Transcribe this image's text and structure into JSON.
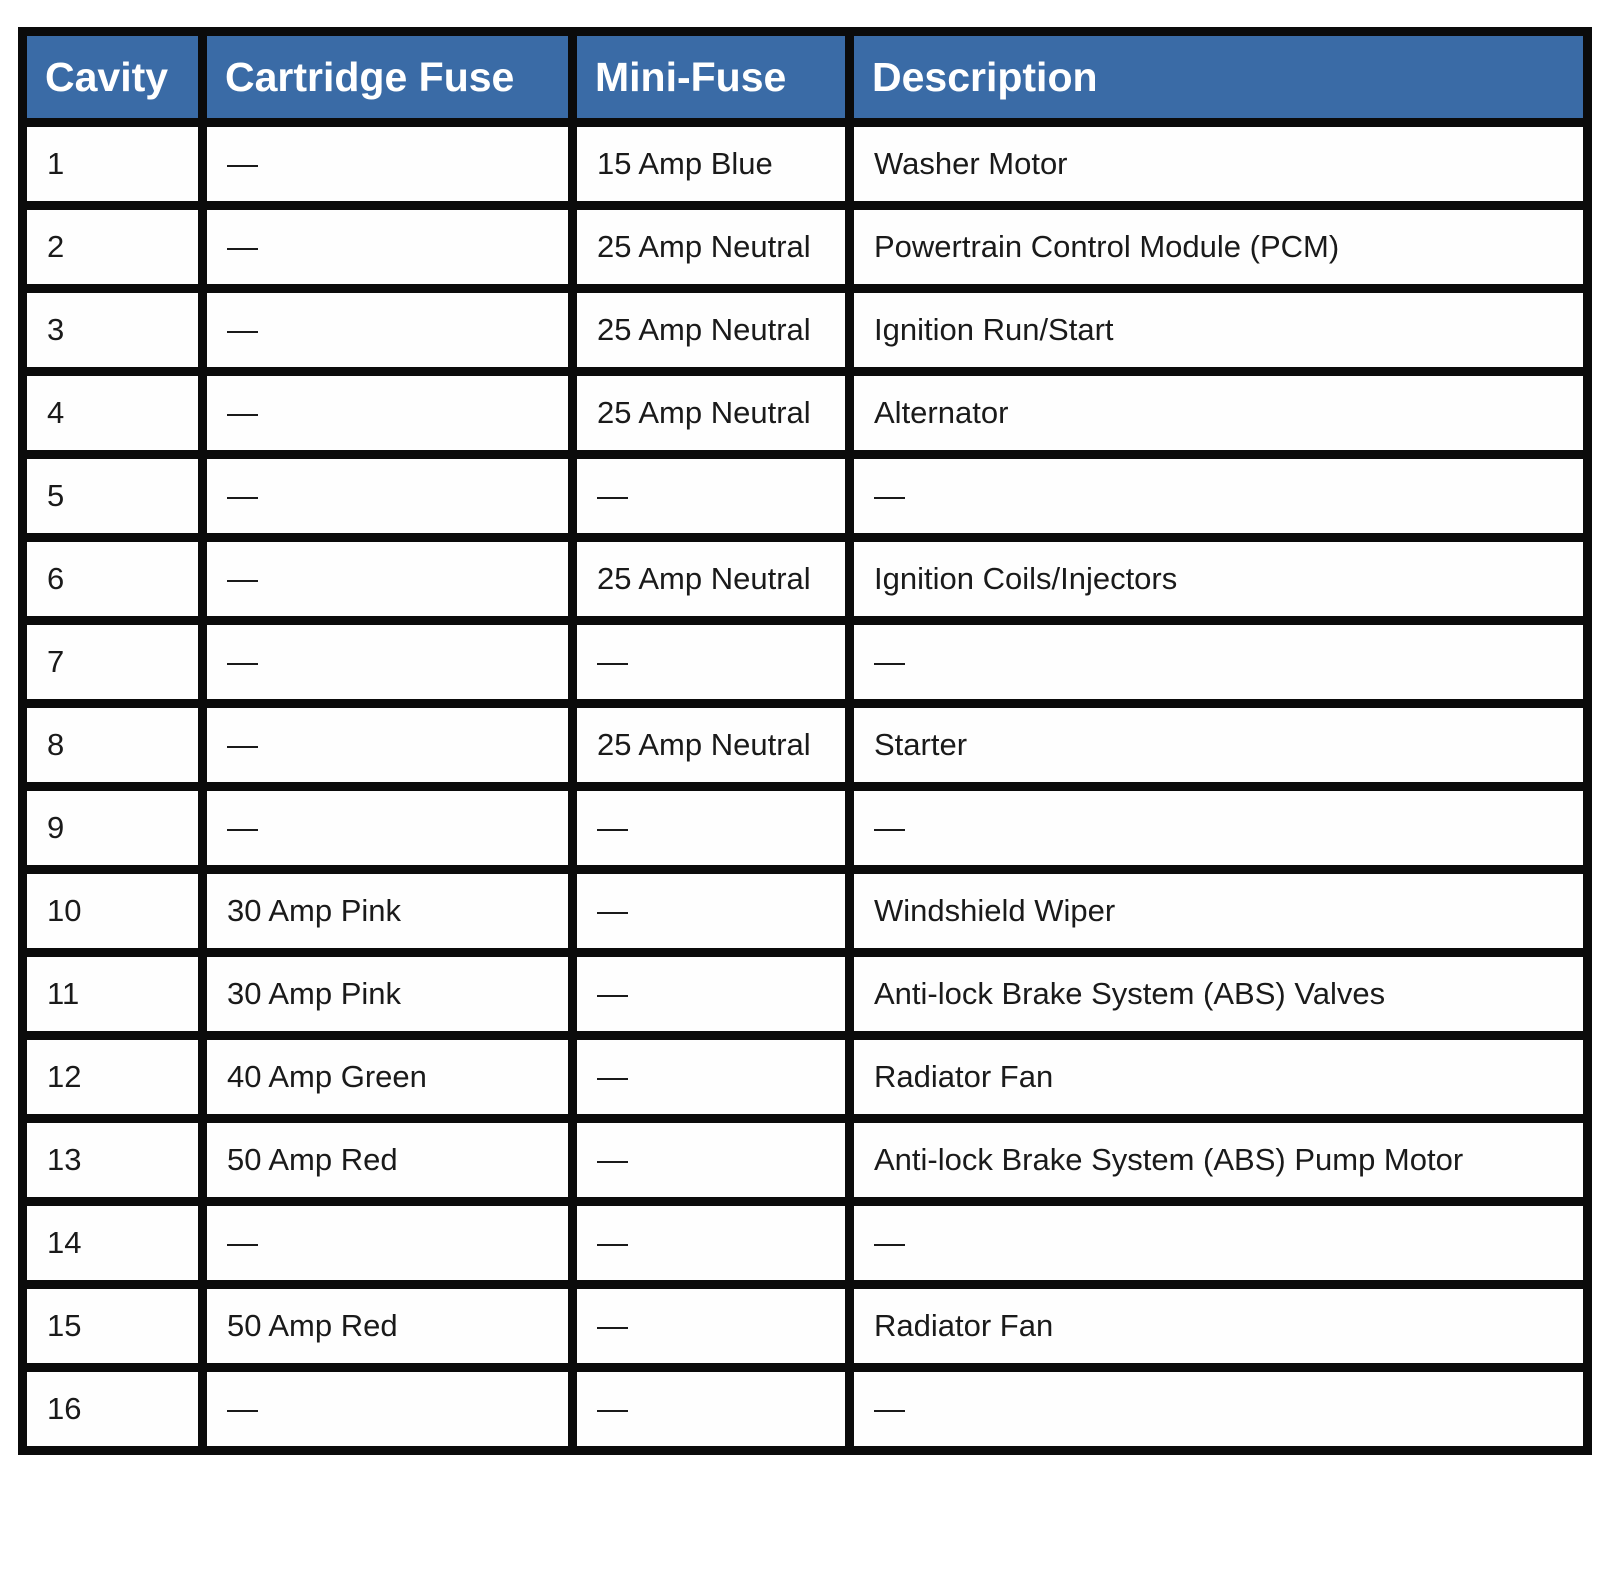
{
  "table": {
    "title": "fuse-box-table",
    "headers": [
      "Cavity",
      "Cartridge Fuse",
      "Mini-Fuse",
      "Description"
    ],
    "rows": [
      {
        "cavity": "1",
        "cartridge_fuse": "—",
        "mini_fuse": "15 Amp Blue",
        "description": "Washer Motor"
      },
      {
        "cavity": "2",
        "cartridge_fuse": "—",
        "mini_fuse": "25 Amp Neutral",
        "description": "Powertrain Control Module (PCM)"
      },
      {
        "cavity": "3",
        "cartridge_fuse": "—",
        "mini_fuse": "25 Amp Neutral",
        "description": "Ignition Run/Start"
      },
      {
        "cavity": "4",
        "cartridge_fuse": "—",
        "mini_fuse": "25 Amp Neutral",
        "description": "Alternator"
      },
      {
        "cavity": "5",
        "cartridge_fuse": "—",
        "mini_fuse": "—",
        "description": "—"
      },
      {
        "cavity": "6",
        "cartridge_fuse": "—",
        "mini_fuse": "25 Amp Neutral",
        "description": "Ignition Coils/Injectors"
      },
      {
        "cavity": "7",
        "cartridge_fuse": "—",
        "mini_fuse": "—",
        "description": "—"
      },
      {
        "cavity": "8",
        "cartridge_fuse": "—",
        "mini_fuse": "25 Amp Neutral",
        "description": "Starter"
      },
      {
        "cavity": "9",
        "cartridge_fuse": "—",
        "mini_fuse": "—",
        "description": "—"
      },
      {
        "cavity": "10",
        "cartridge_fuse": "30 Amp Pink",
        "mini_fuse": "—",
        "description": "Windshield Wiper"
      },
      {
        "cavity": "11",
        "cartridge_fuse": "30 Amp Pink",
        "mini_fuse": "—",
        "description": "Anti-lock Brake System (ABS) Valves"
      },
      {
        "cavity": "12",
        "cartridge_fuse": "40 Amp Green",
        "mini_fuse": "—",
        "description": "Radiator Fan"
      },
      {
        "cavity": "13",
        "cartridge_fuse": "50 Amp Red",
        "mini_fuse": "—",
        "description": "Anti-lock Brake System (ABS) Pump Motor"
      },
      {
        "cavity": "14",
        "cartridge_fuse": "—",
        "mini_fuse": "—",
        "description": "—"
      },
      {
        "cavity": "15",
        "cartridge_fuse": "50 Amp Red",
        "mini_fuse": "—",
        "description": "Radiator Fan"
      },
      {
        "cavity": "16",
        "cartridge_fuse": "—",
        "mini_fuse": "—",
        "description": "—"
      }
    ],
    "colors": {
      "header_bg": "#3a6ba6",
      "header_text": "#ffffff",
      "border": "#0b0b0b",
      "cell_bg": "#fefefe",
      "body_text": "#1a1a1a"
    }
  }
}
